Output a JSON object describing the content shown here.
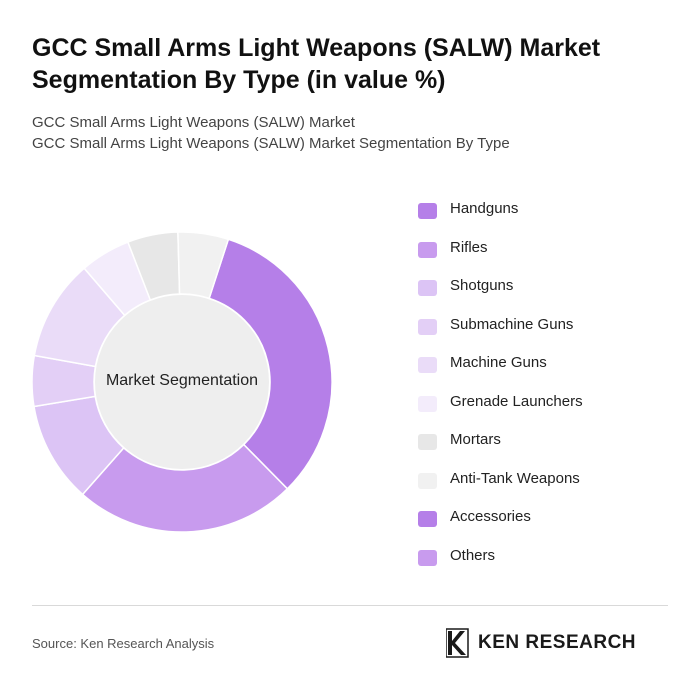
{
  "header": {
    "title": "GCC Small Arms Light Weapons (SALW) Market Segmentation By Type (in value %)",
    "subtitle_1": "GCC Small Arms Light Weapons (SALW) Market",
    "subtitle_2": "GCC Small Arms Light Weapons (SALW) Market Segmentation By Type"
  },
  "chart_data": {
    "type": "pie",
    "subtype": "donut",
    "center_label": "Market Segmentation",
    "legend_position": "right",
    "categories": [
      "Handguns",
      "Rifles",
      "Shotguns",
      "Submachine Guns",
      "Machine Guns",
      "Grenade Launchers",
      "Mortars",
      "Anti-Tank Weapons",
      "Accessories",
      "Others"
    ],
    "values": [
      30,
      22,
      10,
      5,
      10,
      5,
      5,
      5,
      0,
      0
    ],
    "colors": [
      "#b57fe8",
      "#c89bee",
      "#dcc4f5",
      "#e3cff6",
      "#eadcf8",
      "#f3ecfb",
      "#e7e7e7",
      "#f1f1f1",
      "#b57fe8",
      "#c89bee"
    ]
  },
  "footer": {
    "source": "Source: Ken Research Analysis",
    "brand": "KEN RESEARCH",
    "brand_icon": "ken-research-logo"
  }
}
